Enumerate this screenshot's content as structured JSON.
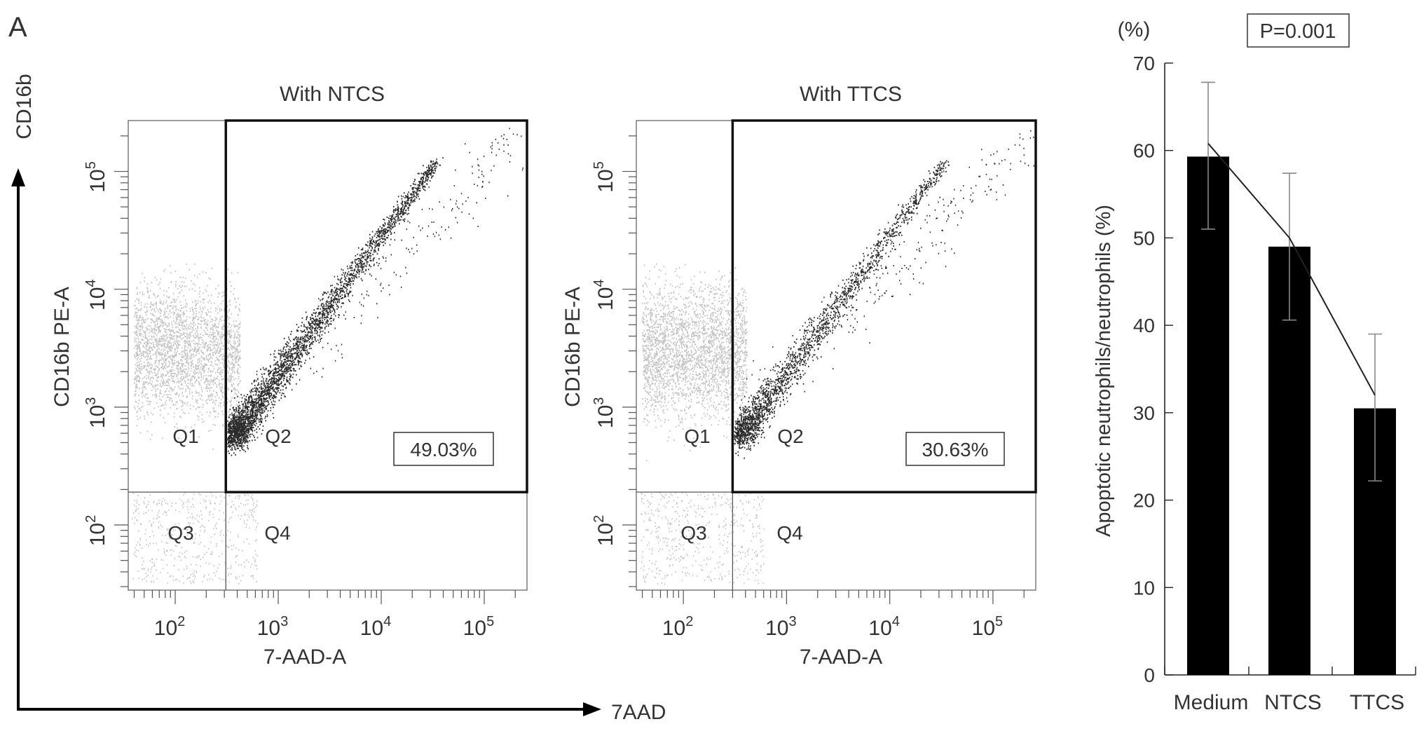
{
  "panel_label": "A",
  "axis_arrows": {
    "y_label": "CD16b",
    "x_label": "7AAD"
  },
  "chart_data": [
    {
      "type": "scatter",
      "title": "With NTCS",
      "xlabel": "7-AAD-A",
      "ylabel": "CD16b PE-A",
      "x_scale": "log",
      "y_scale": "log",
      "xlim": [
        35,
        260000
      ],
      "ylim": [
        28,
        270000
      ],
      "x_ticks": [
        100,
        1000,
        10000,
        100000
      ],
      "y_ticks": [
        100,
        1000,
        10000,
        100000
      ],
      "tick_labels": [
        "10^2",
        "10^3",
        "10^4",
        "10^5"
      ],
      "gate_x": 310,
      "gate_y": 190,
      "quadrants": [
        "Q1",
        "Q2",
        "Q3",
        "Q4"
      ],
      "highlighted_quadrant": "Q2",
      "annotation": "49.03%",
      "q2_percent": 49.03
    },
    {
      "type": "scatter",
      "title": "With TTCS",
      "xlabel": "7-AAD-A",
      "ylabel": "CD16b PE-A",
      "x_scale": "log",
      "y_scale": "log",
      "xlim": [
        35,
        260000
      ],
      "ylim": [
        28,
        270000
      ],
      "x_ticks": [
        100,
        1000,
        10000,
        100000
      ],
      "y_ticks": [
        100,
        1000,
        10000,
        100000
      ],
      "tick_labels": [
        "10^2",
        "10^3",
        "10^4",
        "10^5"
      ],
      "gate_x": 300,
      "gate_y": 190,
      "quadrants": [
        "Q1",
        "Q2",
        "Q3",
        "Q4"
      ],
      "highlighted_quadrant": "Q2",
      "annotation": "30.63%",
      "q2_percent": 30.63
    },
    {
      "type": "bar",
      "categories": [
        "Medium",
        "NTCS",
        "TTCS"
      ],
      "values": [
        59.3,
        49.0,
        30.5
      ],
      "error_high": [
        67.8,
        57.4,
        39.0
      ],
      "error_low": [
        51.0,
        40.6,
        22.2
      ],
      "trend_line": [
        60.8,
        50.0,
        32.0
      ],
      "ylabel": "Apoptotic neutrophils/neutrophils (%)",
      "yunit": "(%)",
      "ylim": [
        0,
        70
      ],
      "yticks": [
        0,
        10,
        20,
        30,
        40,
        50,
        60,
        70
      ],
      "annotation": "P=0.001",
      "bar_color": "#000000"
    }
  ]
}
